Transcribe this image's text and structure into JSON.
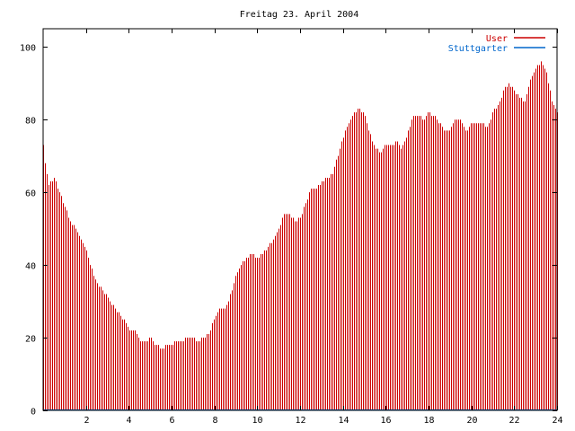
{
  "chart_data": {
    "type": "bar",
    "title": "Freitag 23. April 2004",
    "xlabel": "",
    "ylabel": "",
    "xlim": [
      0,
      24
    ],
    "ylim": [
      0,
      105
    ],
    "x_ticks": [
      2,
      4,
      6,
      8,
      10,
      12,
      14,
      16,
      18,
      20,
      22,
      24
    ],
    "y_ticks": [
      0,
      20,
      40,
      60,
      80,
      100
    ],
    "grid": false,
    "legend_position": "top-right",
    "series": [
      {
        "name": "User",
        "color": "#cc0000",
        "key_points": [
          [
            0.0,
            73
          ],
          [
            0.1,
            67
          ],
          [
            0.25,
            62
          ],
          [
            0.5,
            64
          ],
          [
            0.75,
            60
          ],
          [
            1.0,
            56
          ],
          [
            1.25,
            52
          ],
          [
            1.5,
            50
          ],
          [
            1.75,
            47
          ],
          [
            2.0,
            44
          ],
          [
            2.25,
            39
          ],
          [
            2.5,
            35
          ],
          [
            2.75,
            33
          ],
          [
            3.0,
            31
          ],
          [
            3.25,
            29
          ],
          [
            3.5,
            27
          ],
          [
            3.75,
            25
          ],
          [
            4.0,
            22
          ],
          [
            4.25,
            22
          ],
          [
            4.5,
            19
          ],
          [
            4.75,
            19
          ],
          [
            5.0,
            20
          ],
          [
            5.25,
            18
          ],
          [
            5.5,
            17
          ],
          [
            5.75,
            18
          ],
          [
            6.0,
            18
          ],
          [
            6.25,
            19
          ],
          [
            6.5,
            19
          ],
          [
            6.75,
            20
          ],
          [
            7.0,
            20
          ],
          [
            7.25,
            19
          ],
          [
            7.5,
            20
          ],
          [
            7.75,
            21
          ],
          [
            8.0,
            26
          ],
          [
            8.25,
            28
          ],
          [
            8.5,
            28
          ],
          [
            8.75,
            32
          ],
          [
            9.0,
            37
          ],
          [
            9.25,
            40
          ],
          [
            9.5,
            42
          ],
          [
            9.75,
            43
          ],
          [
            10.0,
            42
          ],
          [
            10.25,
            43
          ],
          [
            10.5,
            45
          ],
          [
            10.75,
            47
          ],
          [
            11.0,
            50
          ],
          [
            11.25,
            54
          ],
          [
            11.5,
            54
          ],
          [
            11.75,
            52
          ],
          [
            12.0,
            53
          ],
          [
            12.25,
            57
          ],
          [
            12.5,
            61
          ],
          [
            12.75,
            61
          ],
          [
            13.0,
            63
          ],
          [
            13.25,
            64
          ],
          [
            13.5,
            65
          ],
          [
            13.75,
            70
          ],
          [
            14.0,
            75
          ],
          [
            14.25,
            79
          ],
          [
            14.5,
            82
          ],
          [
            14.75,
            83
          ],
          [
            15.0,
            81
          ],
          [
            15.25,
            76
          ],
          [
            15.5,
            72
          ],
          [
            15.75,
            71
          ],
          [
            16.0,
            73
          ],
          [
            16.25,
            73
          ],
          [
            16.5,
            74
          ],
          [
            16.75,
            72
          ],
          [
            17.0,
            76
          ],
          [
            17.25,
            81
          ],
          [
            17.5,
            81
          ],
          [
            17.75,
            80
          ],
          [
            18.0,
            82
          ],
          [
            18.25,
            81
          ],
          [
            18.5,
            79
          ],
          [
            18.75,
            77
          ],
          [
            19.0,
            77
          ],
          [
            19.25,
            80
          ],
          [
            19.5,
            80
          ],
          [
            19.75,
            77
          ],
          [
            20.0,
            79
          ],
          [
            20.25,
            79
          ],
          [
            20.5,
            79
          ],
          [
            20.75,
            78
          ],
          [
            21.0,
            82
          ],
          [
            21.25,
            84
          ],
          [
            21.5,
            88
          ],
          [
            21.75,
            90
          ],
          [
            22.0,
            88
          ],
          [
            22.25,
            86
          ],
          [
            22.5,
            85
          ],
          [
            22.75,
            91
          ],
          [
            23.0,
            94
          ],
          [
            23.25,
            96
          ],
          [
            23.5,
            93
          ],
          [
            23.75,
            85
          ],
          [
            24.0,
            82
          ]
        ]
      },
      {
        "name": "Stuttgarter",
        "color": "#0066cc",
        "key_points": [
          [
            0,
            0
          ],
          [
            24,
            0
          ]
        ]
      }
    ]
  }
}
